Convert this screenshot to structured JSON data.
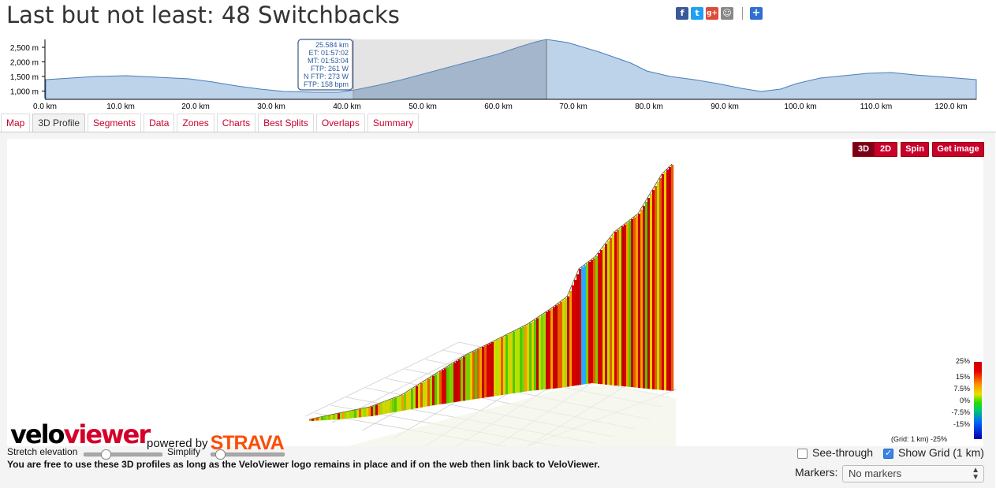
{
  "header": {
    "title": "Last but not least: 48 Switchbacks"
  },
  "share": {
    "icons": [
      "facebook-icon",
      "twitter-icon",
      "google-plus-icon",
      "myspace-icon",
      "add-share-icon"
    ]
  },
  "overview": {
    "y_ticks": [
      "2,500 m",
      "2,000 m",
      "1,500 m",
      "1,000 m"
    ],
    "x_ticks": [
      "0.0 km",
      "10.0 km",
      "20.0 km",
      "30.0 km",
      "40.0 km",
      "50.0 km",
      "60.0 km",
      "70.0 km",
      "80.0 km",
      "90.0 km",
      "100.0 km",
      "110.0 km",
      "120.0 km"
    ],
    "tooltip": [
      "25.584 km",
      "ET: 01:57:02",
      "MT: 01:53:04",
      "FTP: 261 W",
      "N FTP: 273 W",
      "FTP: 158 bpm"
    ],
    "fill_color": "#bcd3ea",
    "line_color": "#4a7fb8"
  },
  "tabs": [
    {
      "label": "Map"
    },
    {
      "label": "3D Profile",
      "active": true
    },
    {
      "label": "Segments"
    },
    {
      "label": "Data"
    },
    {
      "label": "Zones"
    },
    {
      "label": "Charts"
    },
    {
      "label": "Best Splits"
    },
    {
      "label": "Overlaps"
    },
    {
      "label": "Summary"
    }
  ],
  "viewer": {
    "btn_3d": "3D",
    "btn_2d": "2D",
    "btn_spin": "Spin",
    "btn_image": "Get image",
    "legend": [
      "25%",
      "15%",
      "7.5%",
      "0%",
      "-7.5%",
      "-15%",
      "-25%"
    ],
    "grid_note": "(Grid: 1 km)",
    "accent": "#c8002a"
  },
  "branding": {
    "logo_velo": "velo",
    "logo_viewer": "viewer",
    "powered_by": "powered by",
    "strava": "STRAVA"
  },
  "controls": {
    "stretch_label": "Stretch elevation",
    "simplify_label": "Simplify",
    "notice": "You are free to use these 3D profiles as long as the VeloViewer logo remains in place and if on the web then link back to VeloViewer.",
    "see_through_label": "See-through",
    "see_through_checked": false,
    "show_grid_label": "Show Grid (1 km)",
    "show_grid_checked": true,
    "markers_label": "Markers:",
    "markers_value": "No markers"
  }
}
